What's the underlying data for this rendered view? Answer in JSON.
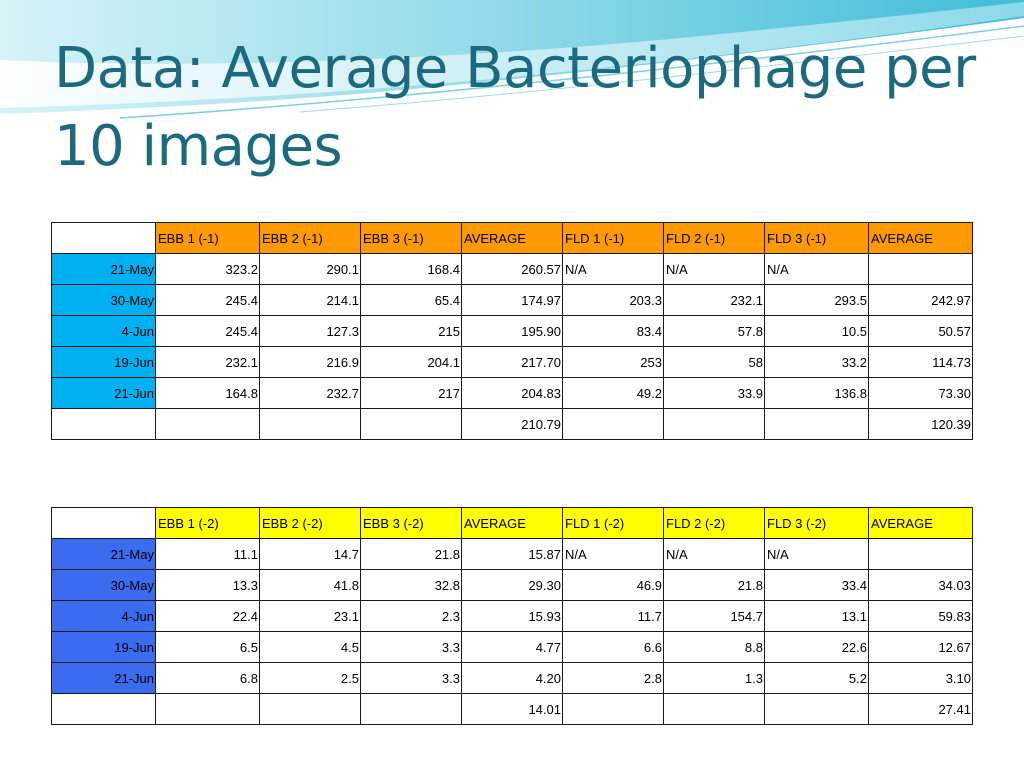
{
  "title": "Data: Average Bacteriophage per 10 images",
  "colors": {
    "title": "#1b6a80",
    "table1_header": "#ff9900",
    "table1_row_label": "#00b0f0",
    "table2_header": "#ffff00",
    "table2_row_label": "#3b6cf0"
  },
  "tables": [
    {
      "headers": [
        "",
        "EBB 1 (-1)",
        "EBB 2 (-1)",
        "EBB 3 (-1)",
        "AVERAGE",
        "FLD 1 (-1)",
        "FLD 2 (-1)",
        "FLD 3 (-1)",
        "AVERAGE"
      ],
      "rows": [
        [
          "21-May",
          "323.2",
          "290.1",
          "168.4",
          "260.57",
          "N/A",
          "N/A",
          "N/A",
          ""
        ],
        [
          "30-May",
          "245.4",
          "214.1",
          "65.4",
          "174.97",
          "203.3",
          "232.1",
          "293.5",
          "242.97"
        ],
        [
          "4-Jun",
          "245.4",
          "127.3",
          "215",
          "195.90",
          "83.4",
          "57.8",
          "10.5",
          "50.57"
        ],
        [
          "19-Jun",
          "232.1",
          "216.9",
          "204.1",
          "217.70",
          "253",
          "58",
          "33.2",
          "114.73"
        ],
        [
          "21-Jun",
          "164.8",
          "232.7",
          "217",
          "204.83",
          "49.2",
          "33.9",
          "136.8",
          "73.30"
        ],
        [
          "",
          "",
          "",
          "",
          "210.79",
          "",
          "",
          "",
          "120.39"
        ]
      ]
    },
    {
      "headers": [
        "",
        "EBB 1 (-2)",
        "EBB 2 (-2)",
        "EBB 3 (-2)",
        "AVERAGE",
        "FLD 1 (-2)",
        "FLD 2 (-2)",
        "FLD 3 (-2)",
        "AVERAGE"
      ],
      "rows": [
        [
          "21-May",
          "11.1",
          "14.7",
          "21.8",
          "15.87",
          "N/A",
          "N/A",
          "N/A",
          ""
        ],
        [
          "30-May",
          "13.3",
          "41.8",
          "32.8",
          "29.30",
          "46.9",
          "21.8",
          "33.4",
          "34.03"
        ],
        [
          "4-Jun",
          "22.4",
          "23.1",
          "2.3",
          "15.93",
          "11.7",
          "154.7",
          "13.1",
          "59.83"
        ],
        [
          "19-Jun",
          "6.5",
          "4.5",
          "3.3",
          "4.77",
          "6.6",
          "8.8",
          "22.6",
          "12.67"
        ],
        [
          "21-Jun",
          "6.8",
          "2.5",
          "3.3",
          "4.20",
          "2.8",
          "1.3",
          "5.2",
          "3.10"
        ],
        [
          "",
          "",
          "",
          "",
          "14.01",
          "",
          "",
          "",
          "27.41"
        ]
      ]
    }
  ]
}
